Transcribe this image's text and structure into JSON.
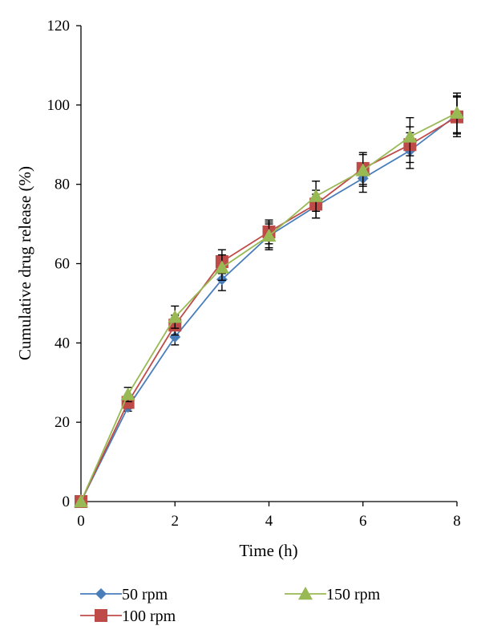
{
  "chart_data": {
    "type": "line",
    "xlabel": "Time (h)",
    "ylabel": "Cumulative drug release (%)",
    "xlim": [
      0,
      8
    ],
    "ylim": [
      0,
      120
    ],
    "xticks": [
      "0",
      "2",
      "4",
      "6",
      "8"
    ],
    "yticks": [
      "0",
      "20",
      "40",
      "60",
      "80",
      "100",
      "120"
    ],
    "grid": false,
    "legend_position": "bottom",
    "x": [
      0,
      1,
      2,
      3,
      4,
      5,
      6,
      7,
      8
    ],
    "series": [
      {
        "name": "50 rpm",
        "color": "#4a7ebb",
        "marker": "diamond",
        "values": [
          0,
          23.8,
          41.5,
          56,
          67,
          74.5,
          81.5,
          88.5,
          97.5
        ],
        "errors": [
          0,
          1,
          2,
          2.8,
          3,
          3,
          3.5,
          4.5,
          4.8
        ]
      },
      {
        "name": "100 rpm",
        "color": "#be4b48",
        "marker": "square",
        "values": [
          0,
          25,
          44.5,
          60.5,
          68,
          75,
          84,
          90,
          97
        ],
        "errors": [
          0,
          1.5,
          2.5,
          3,
          3,
          3.5,
          4,
          4.5,
          5
        ]
      },
      {
        "name": "150 rpm",
        "color": "#98b954",
        "marker": "triangle",
        "values": [
          0,
          27,
          46.5,
          59,
          67,
          77,
          83.5,
          92,
          98
        ],
        "errors": [
          0,
          1.8,
          2.8,
          3.2,
          3.5,
          3.8,
          4,
          4.8,
          5
        ]
      }
    ]
  }
}
